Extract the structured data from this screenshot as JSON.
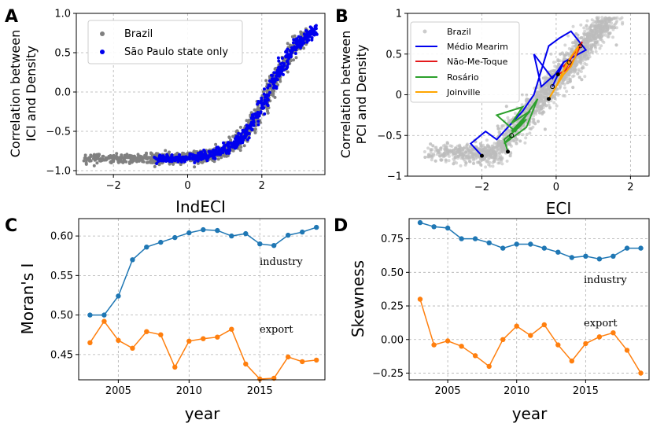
{
  "colors": {
    "grey": "#808080",
    "blue": "#0000ee",
    "c_blue": "#1f77b4",
    "c_orange": "#ff7f0e",
    "red": "#e41a1c",
    "green": "#2ca02c",
    "orange": "#ffa500"
  },
  "chart_data": [
    {
      "panel": "A",
      "type": "scatter",
      "xlabel": "IndECI",
      "ylabel_line1": "Correlation between",
      "ylabel_line2": "ICI and Density",
      "xlim": [
        -3.0,
        3.7
      ],
      "ylim": [
        -1.05,
        1.0
      ],
      "xticks": [
        {
          "v": -2,
          "label": "−2"
        },
        {
          "v": 0,
          "label": "0"
        },
        {
          "v": 2,
          "label": "2"
        }
      ],
      "yticks": [
        {
          "v": 1.0,
          "label": "1.0"
        },
        {
          "v": 0.5,
          "label": "0.5"
        },
        {
          "v": 0.0,
          "label": "0.0"
        },
        {
          "v": -0.5,
          "label": "−0.5"
        },
        {
          "v": -1.0,
          "label": "−1.0"
        }
      ],
      "legend": [
        "Brazil",
        "São Paulo state only"
      ],
      "curve_model": "y = -0.85 + 1.72 / (1 + exp(-2.2*(x - 2.2)))",
      "series": [
        {
          "name": "Brazil",
          "x_range": [
            -2.8,
            3.3
          ],
          "points": 1200
        },
        {
          "name": "São Paulo state only",
          "x_range": [
            -0.9,
            3.5
          ],
          "points": 600
        }
      ]
    },
    {
      "panel": "B",
      "type": "scatter",
      "xlabel": "ECI",
      "ylabel_line1": "Correlation between",
      "ylabel_line2": "PCI and Density",
      "xlim": [
        -4.0,
        2.5
      ],
      "ylim": [
        -1.0,
        1.0
      ],
      "xticks": [
        {
          "v": -2,
          "label": "−2"
        },
        {
          "v": 0,
          "label": "0"
        },
        {
          "v": 2,
          "label": "2"
        }
      ],
      "yticks": [
        {
          "v": 1,
          "label": "1"
        },
        {
          "v": 0.5,
          "label": "0.5"
        },
        {
          "v": 0,
          "label": "0"
        },
        {
          "v": -0.5,
          "label": "−0.5"
        },
        {
          "v": -1,
          "label": "−1"
        }
      ],
      "legend": [
        "Brazil",
        "Médio Mearim",
        "Não-Me-Toque",
        "Rosário",
        "Joinville"
      ],
      "trajectories": [
        {
          "name": "Médio Mearim",
          "x": [
            -2.0,
            -2.3,
            -1.9,
            -1.6,
            -1.3,
            -0.9,
            -0.6,
            -0.4,
            -0.2,
            0.1,
            0.4,
            0.8,
            0.2,
            0.1,
            -0.4,
            -0.6,
            -0.1,
            0.2,
            -0.1
          ],
          "y": [
            -0.75,
            -0.6,
            -0.45,
            -0.55,
            -0.4,
            -0.2,
            0.0,
            0.3,
            0.6,
            0.7,
            0.78,
            0.55,
            0.4,
            0.3,
            0.1,
            0.5,
            0.2,
            0.4,
            0.1
          ]
        },
        {
          "name": "Não-Me-Toque",
          "x": [
            0.05,
            0.25,
            0.35,
            0.45,
            0.6,
            0.7,
            0.4,
            0.2,
            0.3,
            0.5,
            0.65
          ],
          "y": [
            0.25,
            0.3,
            0.4,
            0.5,
            0.55,
            0.65,
            0.45,
            0.35,
            0.3,
            0.45,
            0.6
          ]
        },
        {
          "name": "Rosário",
          "x": [
            -1.3,
            -1.4,
            -1.0,
            -0.8,
            -1.2,
            -0.7,
            -1.2,
            -0.9,
            -1.6,
            -1.1,
            -0.5,
            -0.8,
            -1.4,
            -1.2
          ],
          "y": [
            -0.7,
            -0.55,
            -0.4,
            -0.3,
            -0.45,
            -0.2,
            -0.35,
            -0.15,
            -0.25,
            -0.45,
            -0.05,
            -0.4,
            -0.6,
            -0.5
          ]
        },
        {
          "name": "Joinville",
          "x": [
            -0.2,
            0.0,
            0.2,
            0.4,
            0.5,
            0.6,
            0.3,
            0.1,
            0.0,
            0.2,
            0.35
          ],
          "y": [
            -0.05,
            0.1,
            0.25,
            0.35,
            0.45,
            0.6,
            0.4,
            0.2,
            0.1,
            0.3,
            0.4
          ]
        }
      ]
    },
    {
      "panel": "C",
      "type": "line",
      "xlabel": "year",
      "ylabel": "Moran's I",
      "xlim": [
        2002.2,
        2019.6
      ],
      "ylim": [
        0.418,
        0.622
      ],
      "xticks": [
        {
          "v": 2005,
          "label": "2005"
        },
        {
          "v": 2010,
          "label": "2010"
        },
        {
          "v": 2015,
          "label": "2015"
        }
      ],
      "yticks": [
        {
          "v": 0.6,
          "label": "0.60"
        },
        {
          "v": 0.55,
          "label": "0.55"
        },
        {
          "v": 0.5,
          "label": "0.50"
        },
        {
          "v": 0.45,
          "label": "0.45"
        }
      ],
      "x": [
        2003,
        2004,
        2005,
        2006,
        2007,
        2008,
        2009,
        2010,
        2011,
        2012,
        2013,
        2014,
        2015,
        2016,
        2017,
        2018,
        2019
      ],
      "series": [
        {
          "name": "industry",
          "values": [
            0.5,
            0.5,
            0.524,
            0.57,
            0.586,
            0.592,
            0.598,
            0.604,
            0.608,
            0.607,
            0.6,
            0.603,
            0.59,
            0.588,
            0.601,
            0.605,
            0.611
          ]
        },
        {
          "name": "export",
          "values": [
            0.465,
            0.492,
            0.468,
            0.458,
            0.479,
            0.475,
            0.434,
            0.467,
            0.47,
            0.472,
            0.482,
            0.438,
            0.419,
            0.42,
            0.447,
            0.441,
            0.443
          ]
        }
      ]
    },
    {
      "panel": "D",
      "type": "line",
      "xlabel": "year",
      "ylabel": "Skewness",
      "xlim": [
        2002.2,
        2019.6
      ],
      "ylim": [
        -0.3,
        0.9
      ],
      "xticks": [
        {
          "v": 2005,
          "label": "2005"
        },
        {
          "v": 2010,
          "label": "2010"
        },
        {
          "v": 2015,
          "label": "2015"
        }
      ],
      "yticks": [
        {
          "v": 0.75,
          "label": "0.75"
        },
        {
          "v": 0.5,
          "label": "0.50"
        },
        {
          "v": 0.25,
          "label": "0.25"
        },
        {
          "v": 0.0,
          "label": "0.00"
        },
        {
          "v": -0.25,
          "label": "−0.25"
        }
      ],
      "x": [
        2003,
        2004,
        2005,
        2006,
        2007,
        2008,
        2009,
        2010,
        2011,
        2012,
        2013,
        2014,
        2015,
        2016,
        2017,
        2018,
        2019
      ],
      "series": [
        {
          "name": "industry",
          "values": [
            0.87,
            0.84,
            0.83,
            0.75,
            0.75,
            0.72,
            0.68,
            0.71,
            0.71,
            0.68,
            0.65,
            0.61,
            0.62,
            0.6,
            0.62,
            0.68,
            0.68
          ]
        },
        {
          "name": "export",
          "values": [
            0.3,
            -0.04,
            -0.01,
            -0.05,
            -0.12,
            -0.2,
            0.0,
            0.1,
            0.03,
            0.11,
            -0.04,
            -0.16,
            -0.03,
            0.02,
            0.05,
            -0.08,
            -0.25
          ]
        }
      ]
    }
  ],
  "panel_letters": {
    "A": "A",
    "B": "B",
    "C": "C",
    "D": "D"
  },
  "annotations": {
    "C_industry": "industry",
    "C_export": "export",
    "D_industry": "industry",
    "D_export": "export"
  }
}
